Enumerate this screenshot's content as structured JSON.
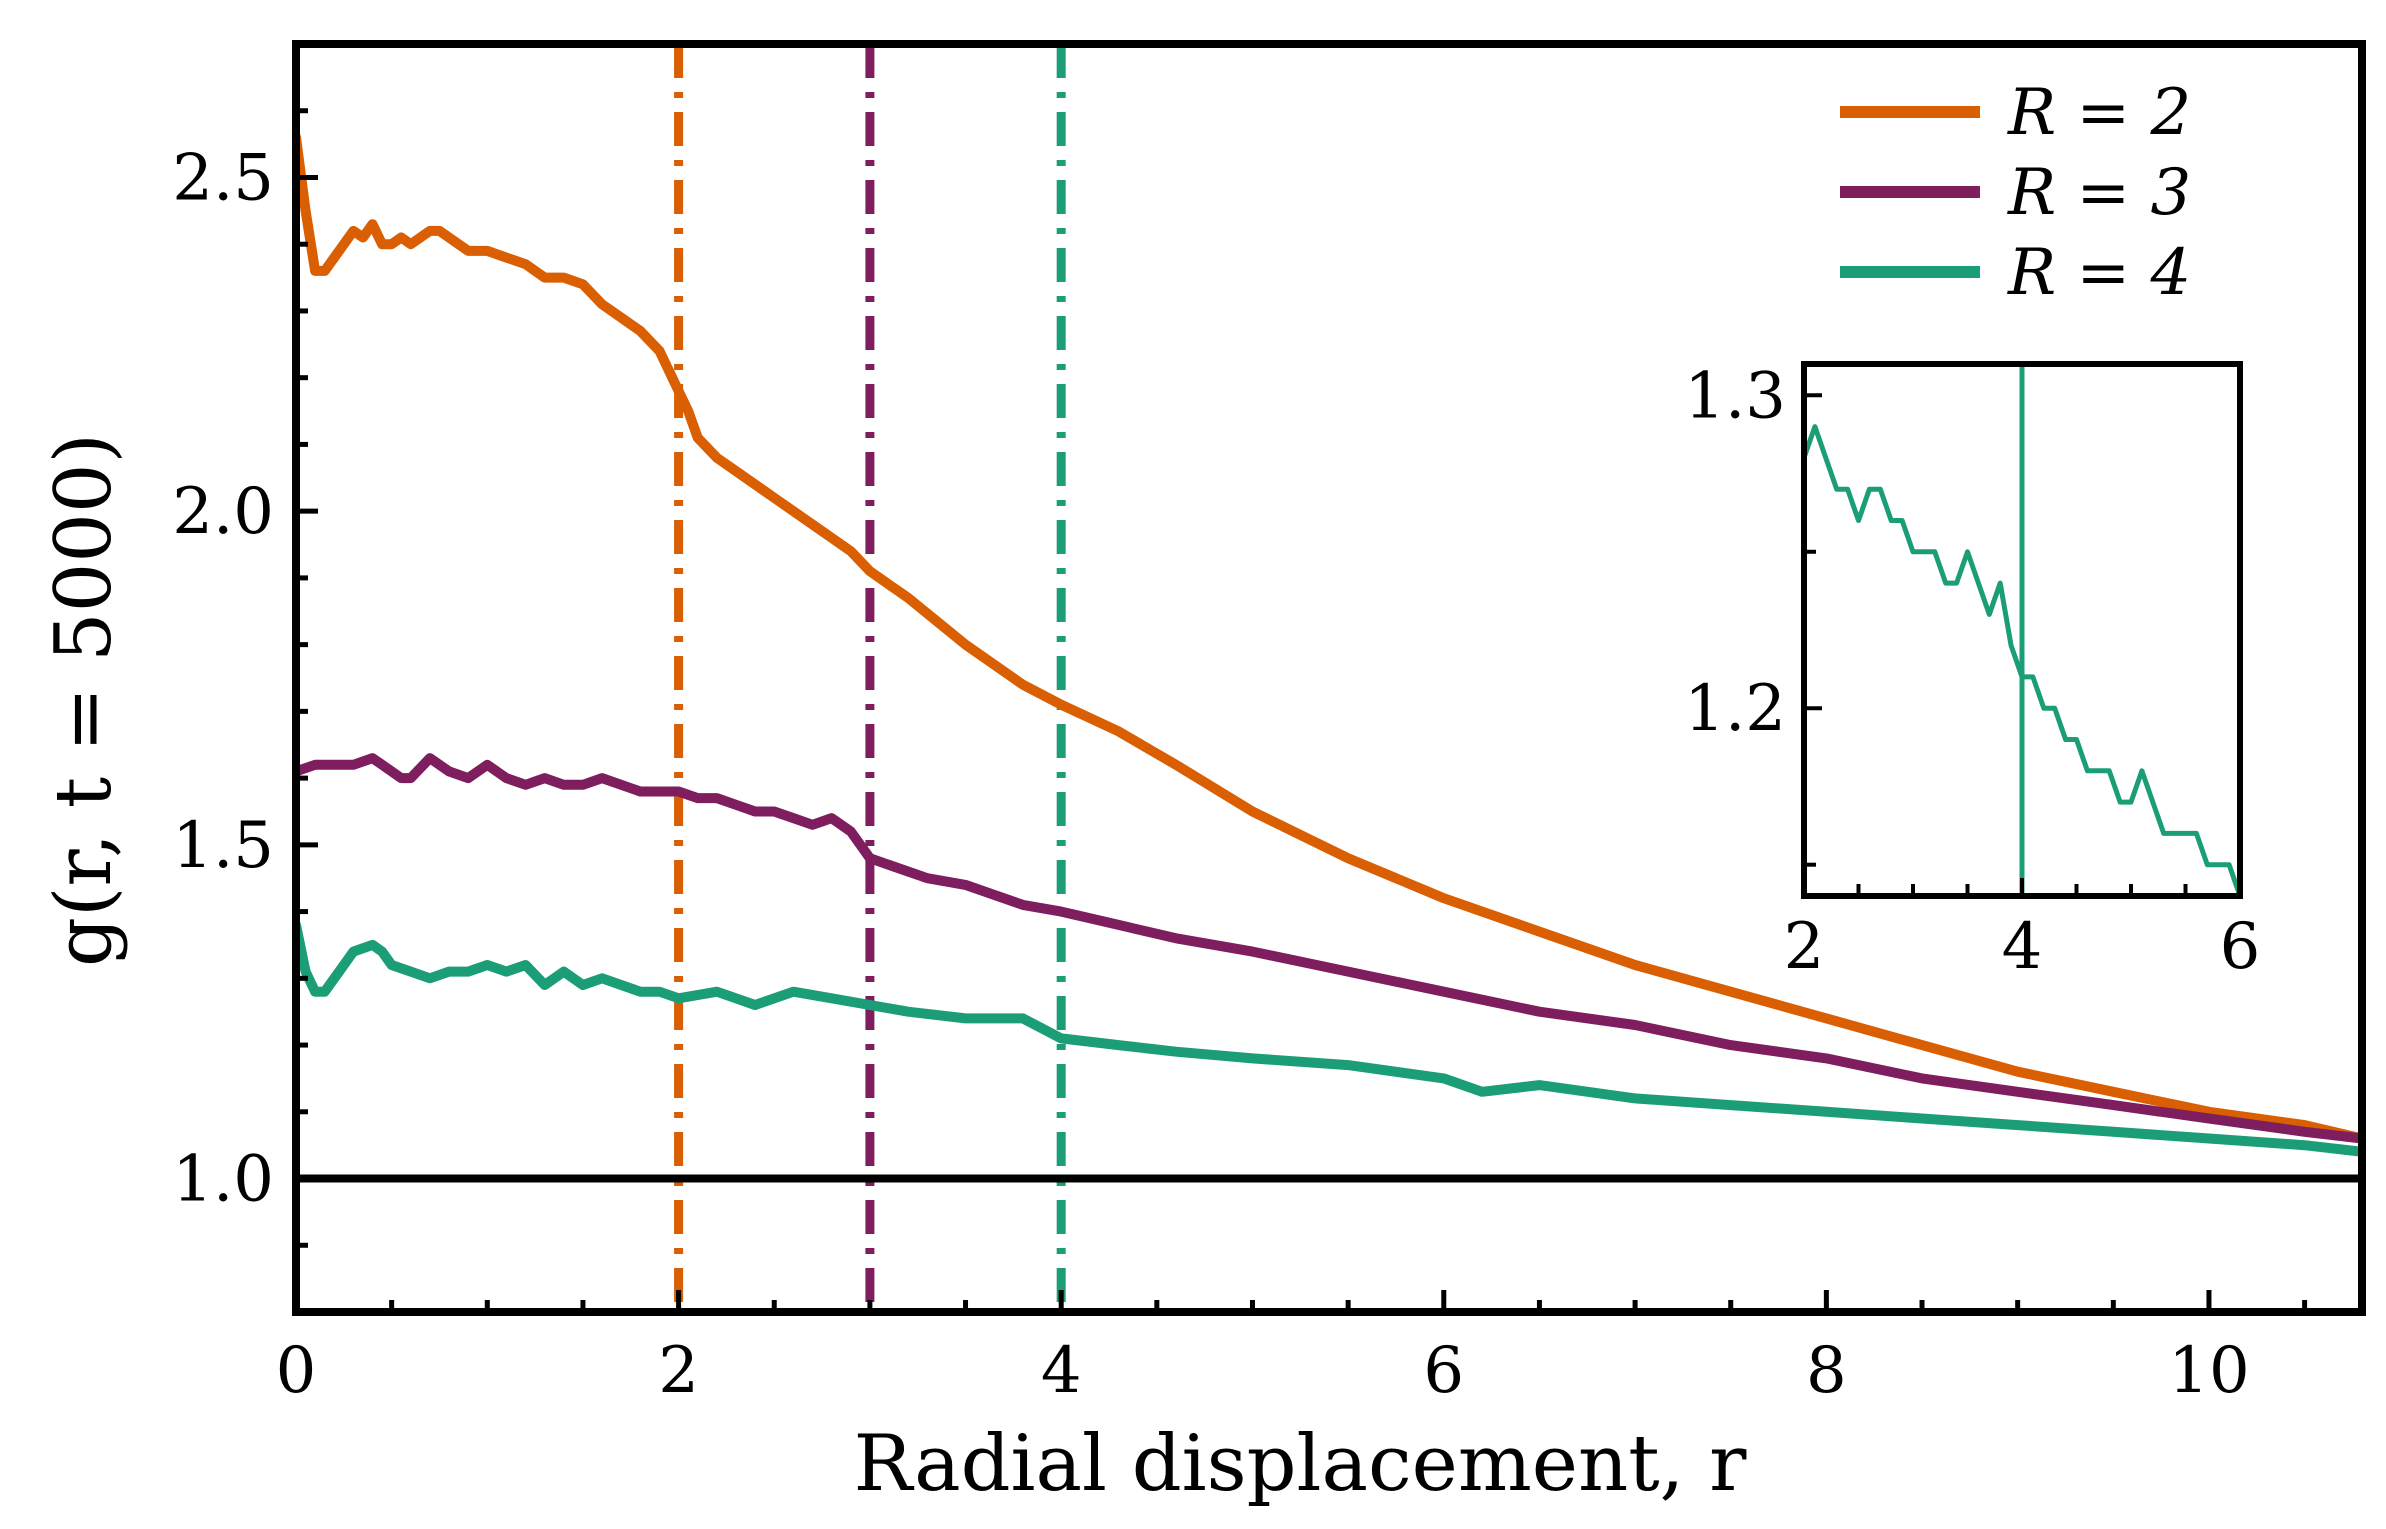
{
  "chart_data": [
    {
      "type": "line",
      "title": "",
      "xlabel": "Radial displacement, r",
      "ylabel": "g(r, t = 5000)",
      "xlim": [
        0,
        10.8
      ],
      "ylim": [
        0.8,
        2.7
      ],
      "x_ticks": [
        0,
        2,
        4,
        6,
        8,
        10
      ],
      "x_tick_labels": [
        "0",
        "2",
        "4",
        "6",
        "8",
        "10"
      ],
      "y_ticks": [
        1.0,
        1.5,
        2.0,
        2.5
      ],
      "y_tick_labels": [
        "1.0",
        "1.5",
        "2.0",
        "2.5"
      ],
      "legend_position": "top-right",
      "series": [
        {
          "name": "R = 2",
          "color": "#d95f02",
          "x": [
            0,
            0.05,
            0.1,
            0.15,
            0.2,
            0.3,
            0.35,
            0.4,
            0.45,
            0.5,
            0.55,
            0.6,
            0.7,
            0.75,
            0.8,
            0.9,
            1.0,
            1.1,
            1.2,
            1.3,
            1.4,
            1.5,
            1.6,
            1.7,
            1.8,
            1.9,
            2.0,
            2.05,
            2.1,
            2.2,
            2.3,
            2.5,
            2.7,
            2.9,
            3.0,
            3.2,
            3.5,
            3.8,
            4.0,
            4.3,
            4.6,
            5.0,
            5.5,
            6.0,
            6.5,
            7.0,
            7.5,
            8.0,
            8.5,
            9.0,
            9.5,
            10.0,
            10.5,
            10.8
          ],
          "y": [
            2.56,
            2.45,
            2.36,
            2.36,
            2.38,
            2.42,
            2.41,
            2.43,
            2.4,
            2.4,
            2.41,
            2.4,
            2.42,
            2.42,
            2.41,
            2.39,
            2.39,
            2.38,
            2.37,
            2.35,
            2.35,
            2.34,
            2.31,
            2.29,
            2.27,
            2.24,
            2.18,
            2.15,
            2.11,
            2.08,
            2.06,
            2.02,
            1.98,
            1.94,
            1.91,
            1.87,
            1.8,
            1.74,
            1.71,
            1.67,
            1.62,
            1.55,
            1.48,
            1.42,
            1.37,
            1.32,
            1.28,
            1.24,
            1.2,
            1.16,
            1.13,
            1.1,
            1.08,
            1.06
          ]
        },
        {
          "name": "R = 3",
          "color": "#7e1e5e",
          "x": [
            0,
            0.1,
            0.2,
            0.3,
            0.4,
            0.5,
            0.55,
            0.6,
            0.7,
            0.8,
            0.9,
            1.0,
            1.1,
            1.2,
            1.3,
            1.4,
            1.5,
            1.6,
            1.7,
            1.8,
            1.9,
            2.0,
            2.1,
            2.2,
            2.3,
            2.4,
            2.5,
            2.6,
            2.7,
            2.8,
            2.9,
            3.0,
            3.1,
            3.3,
            3.5,
            3.8,
            4.0,
            4.3,
            4.6,
            5.0,
            5.5,
            6.0,
            6.5,
            7.0,
            7.5,
            8.0,
            8.5,
            9.0,
            9.5,
            10.0,
            10.5,
            10.8
          ],
          "y": [
            1.61,
            1.62,
            1.62,
            1.62,
            1.63,
            1.61,
            1.6,
            1.6,
            1.63,
            1.61,
            1.6,
            1.62,
            1.6,
            1.59,
            1.6,
            1.59,
            1.59,
            1.6,
            1.59,
            1.58,
            1.58,
            1.58,
            1.57,
            1.57,
            1.56,
            1.55,
            1.55,
            1.54,
            1.53,
            1.54,
            1.52,
            1.48,
            1.47,
            1.45,
            1.44,
            1.41,
            1.4,
            1.38,
            1.36,
            1.34,
            1.31,
            1.28,
            1.25,
            1.23,
            1.2,
            1.18,
            1.15,
            1.13,
            1.11,
            1.09,
            1.07,
            1.06
          ]
        },
        {
          "name": "R = 4",
          "color": "#1b9e77",
          "x": [
            0,
            0.05,
            0.1,
            0.15,
            0.2,
            0.3,
            0.4,
            0.45,
            0.5,
            0.6,
            0.7,
            0.8,
            0.9,
            1.0,
            1.1,
            1.2,
            1.3,
            1.4,
            1.5,
            1.6,
            1.7,
            1.8,
            1.9,
            2.0,
            2.2,
            2.4,
            2.6,
            2.8,
            3.0,
            3.2,
            3.5,
            3.8,
            4.0,
            4.3,
            4.6,
            5.0,
            5.5,
            6.0,
            6.2,
            6.5,
            7.0,
            7.5,
            8.0,
            8.5,
            9.0,
            9.5,
            10.0,
            10.5,
            10.8
          ],
          "y": [
            1.38,
            1.31,
            1.28,
            1.28,
            1.3,
            1.34,
            1.35,
            1.34,
            1.32,
            1.31,
            1.3,
            1.31,
            1.31,
            1.32,
            1.31,
            1.32,
            1.29,
            1.31,
            1.29,
            1.3,
            1.29,
            1.28,
            1.28,
            1.27,
            1.28,
            1.26,
            1.28,
            1.27,
            1.26,
            1.25,
            1.24,
            1.24,
            1.21,
            1.2,
            1.19,
            1.18,
            1.17,
            1.15,
            1.13,
            1.14,
            1.12,
            1.11,
            1.1,
            1.09,
            1.08,
            1.07,
            1.06,
            1.05,
            1.04
          ]
        }
      ],
      "reference_lines": [
        {
          "orientation": "vertical",
          "x": 2,
          "color": "#d95f02",
          "style": "dash-dot"
        },
        {
          "orientation": "vertical",
          "x": 3,
          "color": "#7e1e5e",
          "style": "dash-dot"
        },
        {
          "orientation": "vertical",
          "x": 4,
          "color": "#1b9e77",
          "style": "dash-dot"
        },
        {
          "orientation": "horizontal",
          "y": 1.0,
          "color": "#000000",
          "style": "solid"
        }
      ],
      "grid": false
    },
    {
      "type": "line",
      "title": "",
      "xlabel": "",
      "ylabel": "",
      "xlim": [
        2,
        6
      ],
      "ylim": [
        1.14,
        1.31
      ],
      "x_ticks": [
        2,
        4,
        6
      ],
      "x_tick_labels": [
        "2",
        "4",
        "6"
      ],
      "y_ticks": [
        1.2,
        1.3
      ],
      "y_tick_labels": [
        "1.2",
        "1.3"
      ],
      "series": [
        {
          "name": "R = 4",
          "color": "#1b9e77",
          "x": [
            2.0,
            2.1,
            2.2,
            2.3,
            2.4,
            2.5,
            2.6,
            2.7,
            2.8,
            2.9,
            3.0,
            3.1,
            3.2,
            3.3,
            3.4,
            3.5,
            3.6,
            3.7,
            3.8,
            3.9,
            4.0,
            4.1,
            4.2,
            4.3,
            4.4,
            4.5,
            4.6,
            4.7,
            4.8,
            4.9,
            5.0,
            5.1,
            5.2,
            5.3,
            5.4,
            5.5,
            5.6,
            5.7,
            5.8,
            5.9,
            6.0
          ],
          "y": [
            1.28,
            1.29,
            1.28,
            1.27,
            1.27,
            1.26,
            1.27,
            1.27,
            1.26,
            1.26,
            1.25,
            1.25,
            1.25,
            1.24,
            1.24,
            1.25,
            1.24,
            1.23,
            1.24,
            1.22,
            1.21,
            1.21,
            1.2,
            1.2,
            1.19,
            1.19,
            1.18,
            1.18,
            1.18,
            1.17,
            1.17,
            1.18,
            1.17,
            1.16,
            1.16,
            1.16,
            1.16,
            1.15,
            1.15,
            1.15,
            1.14
          ]
        }
      ],
      "reference_lines": [
        {
          "orientation": "vertical",
          "x": 4,
          "color": "#1b9e77",
          "style": "solid"
        }
      ],
      "grid": false
    }
  ]
}
